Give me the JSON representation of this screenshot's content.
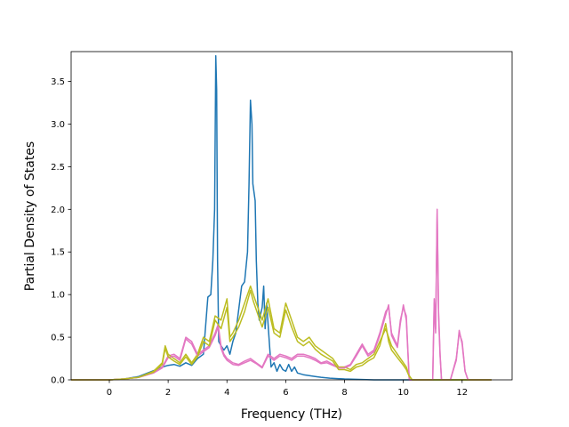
{
  "chart_data": {
    "type": "line",
    "title": "",
    "xlabel": "Frequency (THz)",
    "ylabel": "Partial Density of States",
    "xlim": [
      -1.3,
      13.7
    ],
    "ylim": [
      0,
      3.85
    ],
    "xticks": [
      0,
      2,
      4,
      6,
      8,
      10,
      12
    ],
    "yticks": [
      0.0,
      0.5,
      1.0,
      1.5,
      2.0,
      2.5,
      3.0,
      3.5
    ],
    "xtick_labels": [
      "0",
      "2",
      "4",
      "6",
      "8",
      "10",
      "12"
    ],
    "ytick_labels": [
      "0.0",
      "0.5",
      "1.0",
      "1.5",
      "2.0",
      "2.5",
      "3.0",
      "3.5"
    ],
    "grid": false,
    "legend": "none",
    "series": [
      {
        "color": "#1f77b4",
        "x": [
          -1.3,
          0.0,
          0.5,
          1.0,
          1.3,
          1.6,
          1.8,
          2.0,
          2.2,
          2.4,
          2.6,
          2.8,
          3.0,
          3.2,
          3.35,
          3.45,
          3.52,
          3.58,
          3.62,
          3.65,
          3.68,
          3.72,
          3.8,
          3.9,
          4.0,
          4.1,
          4.2,
          4.3,
          4.5,
          4.6,
          4.7,
          4.75,
          4.8,
          4.85,
          4.88,
          4.92,
          4.96,
          5.0,
          5.05,
          5.1,
          5.2,
          5.25,
          5.3,
          5.35,
          5.45,
          5.5,
          5.6,
          5.7,
          5.8,
          5.9,
          6.0,
          6.1,
          6.2,
          6.3,
          6.4,
          6.6,
          6.8,
          7.0,
          7.2,
          7.5,
          8.0,
          9.0,
          10.0,
          11.0,
          12.0,
          13.0
        ],
        "y": [
          0.0,
          0.0,
          0.01,
          0.04,
          0.08,
          0.12,
          0.15,
          0.17,
          0.18,
          0.16,
          0.2,
          0.17,
          0.25,
          0.3,
          0.97,
          1.0,
          1.4,
          2.0,
          3.8,
          3.4,
          1.4,
          0.45,
          0.4,
          0.35,
          0.4,
          0.3,
          0.45,
          0.55,
          1.1,
          1.15,
          1.5,
          2.3,
          3.28,
          3.0,
          2.3,
          2.2,
          2.1,
          1.4,
          0.9,
          0.7,
          0.85,
          1.1,
          0.6,
          0.9,
          0.4,
          0.15,
          0.2,
          0.1,
          0.18,
          0.12,
          0.1,
          0.18,
          0.1,
          0.15,
          0.08,
          0.06,
          0.05,
          0.04,
          0.03,
          0.02,
          0.01,
          0.0,
          0.0,
          0.0,
          0.0,
          0.0
        ]
      },
      {
        "color": "#e377c2",
        "x": [
          -1.3,
          0.0,
          0.5,
          1.0,
          1.5,
          1.8,
          2.0,
          2.2,
          2.4,
          2.6,
          2.8,
          3.0,
          3.2,
          3.4,
          3.6,
          3.7,
          3.8,
          3.9,
          4.0,
          4.2,
          4.4,
          4.6,
          4.8,
          5.0,
          5.2,
          5.4,
          5.6,
          5.8,
          6.0,
          6.2,
          6.4,
          6.6,
          6.8,
          7.0,
          7.2,
          7.4,
          7.6,
          7.8,
          8.0,
          8.2,
          8.4,
          8.6,
          8.8,
          9.0,
          9.2,
          9.4,
          9.5,
          9.6,
          9.8,
          9.9,
          10.0,
          10.1,
          10.2,
          10.4,
          10.6,
          10.8,
          11.0,
          11.05,
          11.1,
          11.15,
          11.2,
          11.25,
          11.3,
          11.4,
          11.6,
          11.8,
          11.9,
          12.0,
          12.1,
          12.2,
          13.0
        ],
        "y": [
          0.0,
          0.0,
          0.01,
          0.03,
          0.08,
          0.15,
          0.28,
          0.3,
          0.25,
          0.5,
          0.45,
          0.3,
          0.35,
          0.4,
          0.55,
          0.65,
          0.4,
          0.3,
          0.25,
          0.2,
          0.18,
          0.22,
          0.25,
          0.2,
          0.15,
          0.3,
          0.25,
          0.3,
          0.28,
          0.25,
          0.3,
          0.3,
          0.28,
          0.25,
          0.2,
          0.22,
          0.18,
          0.15,
          0.15,
          0.18,
          0.3,
          0.42,
          0.3,
          0.35,
          0.55,
          0.8,
          0.85,
          0.55,
          0.4,
          0.7,
          0.85,
          0.75,
          0.0,
          0.0,
          0.0,
          0.0,
          0.0,
          0.95,
          0.6,
          2.0,
          0.8,
          0.3,
          0.0,
          0.0,
          0.0,
          0.25,
          0.55,
          0.45,
          0.1,
          0.0,
          0.0
        ]
      },
      {
        "color": "#bcbd22",
        "x": [
          -1.3,
          0.0,
          0.5,
          1.0,
          1.5,
          1.8,
          1.9,
          2.0,
          2.2,
          2.4,
          2.6,
          2.8,
          3.0,
          3.2,
          3.4,
          3.6,
          3.8,
          4.0,
          4.1,
          4.2,
          4.4,
          4.6,
          4.8,
          4.9,
          5.0,
          5.2,
          5.4,
          5.6,
          5.8,
          6.0,
          6.2,
          6.4,
          6.6,
          6.8,
          7.0,
          7.2,
          7.4,
          7.6,
          7.8,
          8.0,
          8.2,
          8.4,
          8.6,
          8.8,
          9.0,
          9.2,
          9.4,
          9.5,
          9.6,
          9.8,
          10.0,
          10.1,
          10.2,
          10.3,
          11.0,
          12.0,
          13.0
        ],
        "y": [
          0.0,
          0.0,
          0.01,
          0.03,
          0.1,
          0.2,
          0.4,
          0.3,
          0.25,
          0.2,
          0.3,
          0.2,
          0.3,
          0.5,
          0.45,
          0.75,
          0.7,
          0.95,
          0.5,
          0.55,
          0.7,
          0.9,
          1.1,
          1.0,
          0.9,
          0.7,
          0.95,
          0.6,
          0.55,
          0.9,
          0.7,
          0.5,
          0.45,
          0.5,
          0.4,
          0.35,
          0.3,
          0.25,
          0.15,
          0.15,
          0.12,
          0.18,
          0.2,
          0.25,
          0.3,
          0.45,
          0.6,
          0.5,
          0.4,
          0.3,
          0.2,
          0.15,
          0.05,
          0.0,
          0.0,
          0.0,
          0.0
        ]
      },
      {
        "color": "#e377c2",
        "x": [
          -1.3,
          0.0,
          0.5,
          1.0,
          1.5,
          1.8,
          2.0,
          2.2,
          2.4,
          2.6,
          2.8,
          3.0,
          3.2,
          3.4,
          3.6,
          3.7,
          3.8,
          3.9,
          4.0,
          4.2,
          4.4,
          4.6,
          4.8,
          5.0,
          5.2,
          5.4,
          5.6,
          5.8,
          6.0,
          6.2,
          6.4,
          6.6,
          6.8,
          7.0,
          7.2,
          7.4,
          7.6,
          7.8,
          8.0,
          8.2,
          8.4,
          8.6,
          8.8,
          9.0,
          9.2,
          9.4,
          9.5,
          9.6,
          9.8,
          9.9,
          10.0,
          10.1,
          10.2,
          10.4,
          10.6,
          10.8,
          11.0,
          11.05,
          11.1,
          11.15,
          11.2,
          11.25,
          11.3,
          11.4,
          11.6,
          11.8,
          11.9,
          12.0,
          12.1,
          12.2,
          13.0
        ],
        "y": [
          0.0,
          0.0,
          0.01,
          0.03,
          0.08,
          0.14,
          0.26,
          0.28,
          0.23,
          0.48,
          0.42,
          0.28,
          0.33,
          0.38,
          0.52,
          0.62,
          0.37,
          0.28,
          0.23,
          0.18,
          0.17,
          0.2,
          0.23,
          0.19,
          0.14,
          0.28,
          0.23,
          0.28,
          0.26,
          0.23,
          0.28,
          0.28,
          0.26,
          0.23,
          0.19,
          0.2,
          0.17,
          0.14,
          0.14,
          0.17,
          0.28,
          0.4,
          0.28,
          0.33,
          0.52,
          0.76,
          0.88,
          0.52,
          0.38,
          0.66,
          0.88,
          0.7,
          0.0,
          0.0,
          0.0,
          0.0,
          0.0,
          0.9,
          0.55,
          1.95,
          0.75,
          0.28,
          0.0,
          0.0,
          0.0,
          0.23,
          0.58,
          0.42,
          0.1,
          0.0,
          0.0
        ]
      },
      {
        "color": "#bcbd22",
        "x": [
          -1.3,
          0.0,
          0.5,
          1.0,
          1.5,
          1.8,
          1.9,
          2.0,
          2.2,
          2.4,
          2.6,
          2.8,
          3.0,
          3.2,
          3.4,
          3.6,
          3.8,
          4.0,
          4.1,
          4.2,
          4.4,
          4.6,
          4.8,
          4.9,
          5.0,
          5.2,
          5.4,
          5.6,
          5.8,
          6.0,
          6.2,
          6.4,
          6.6,
          6.8,
          7.0,
          7.2,
          7.4,
          7.6,
          7.8,
          8.0,
          8.2,
          8.4,
          8.6,
          8.8,
          9.0,
          9.2,
          9.4,
          9.5,
          9.6,
          9.8,
          10.0,
          10.1,
          10.2,
          10.3,
          11.0,
          12.0,
          13.0
        ],
        "y": [
          0.0,
          0.0,
          0.01,
          0.03,
          0.09,
          0.18,
          0.37,
          0.27,
          0.22,
          0.18,
          0.27,
          0.18,
          0.27,
          0.45,
          0.4,
          0.7,
          0.6,
          0.85,
          0.45,
          0.5,
          0.62,
          0.8,
          1.05,
          0.92,
          0.82,
          0.62,
          0.85,
          0.55,
          0.5,
          0.82,
          0.62,
          0.45,
          0.4,
          0.45,
          0.36,
          0.3,
          0.26,
          0.22,
          0.12,
          0.12,
          0.1,
          0.15,
          0.17,
          0.22,
          0.26,
          0.4,
          0.66,
          0.45,
          0.35,
          0.26,
          0.17,
          0.12,
          0.04,
          0.0,
          0.0,
          0.0,
          0.0
        ]
      }
    ]
  }
}
